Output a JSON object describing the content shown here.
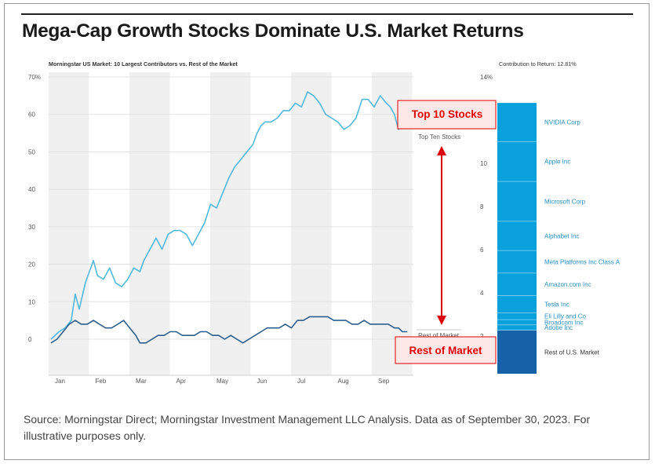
{
  "title": "Mega-Cap Growth Stocks Dominate U.S. Market Returns",
  "source": "Source: Morningstar Direct; Morningstar Investment Management LLC Analysis. Data as of September 30, 2023. For illustrative purposes only.",
  "annotations": {
    "top10_box": "Top 10 Stocks",
    "rest_box": "Rest of Market"
  },
  "colors": {
    "top10": "#52b8dc",
    "rest": "#2e5f8c",
    "bar_light": "#0aa0dc",
    "bar_dark": "#1562a8",
    "annot": "#e00000"
  },
  "chart_data": [
    {
      "type": "line",
      "title": "Morningstar US Market: 10 Largest Contributors vs. Rest of the Market",
      "categories": [
        "Jan",
        "Feb",
        "Mar",
        "Apr",
        "May",
        "Jun",
        "Jul",
        "Aug",
        "Sep"
      ],
      "ylim": [
        -8,
        70
      ],
      "yticks": [
        "70%",
        "60",
        "50",
        "40",
        "30",
        "20",
        "10",
        "0"
      ],
      "series": [
        {
          "name": "Top Ten Stocks",
          "end_label": "Top Ten Stocks",
          "points": [
            [
              0.0,
              0
            ],
            [
              0.2,
              2
            ],
            [
              0.35,
              3
            ],
            [
              0.5,
              5
            ],
            [
              0.6,
              12
            ],
            [
              0.7,
              8
            ],
            [
              0.85,
              15
            ],
            [
              0.95,
              18
            ],
            [
              1.05,
              21
            ],
            [
              1.15,
              17
            ],
            [
              1.3,
              16
            ],
            [
              1.45,
              19
            ],
            [
              1.6,
              15
            ],
            [
              1.75,
              14
            ],
            [
              1.9,
              16
            ],
            [
              2.05,
              19
            ],
            [
              2.2,
              18
            ],
            [
              2.3,
              21
            ],
            [
              2.45,
              24
            ],
            [
              2.6,
              27
            ],
            [
              2.75,
              24
            ],
            [
              2.9,
              28
            ],
            [
              3.05,
              29
            ],
            [
              3.2,
              29
            ],
            [
              3.35,
              28
            ],
            [
              3.5,
              25
            ],
            [
              3.65,
              28
            ],
            [
              3.8,
              31
            ],
            [
              3.95,
              36
            ],
            [
              4.1,
              35
            ],
            [
              4.25,
              39
            ],
            [
              4.4,
              43
            ],
            [
              4.55,
              46
            ],
            [
              4.7,
              48
            ],
            [
              4.85,
              50
            ],
            [
              5.0,
              52
            ],
            [
              5.1,
              55
            ],
            [
              5.2,
              57
            ],
            [
              5.3,
              58
            ],
            [
              5.45,
              58
            ],
            [
              5.6,
              59
            ],
            [
              5.75,
              61
            ],
            [
              5.9,
              61
            ],
            [
              6.05,
              63
            ],
            [
              6.2,
              62
            ],
            [
              6.35,
              66
            ],
            [
              6.5,
              65
            ],
            [
              6.65,
              63
            ],
            [
              6.8,
              60
            ],
            [
              6.95,
              59
            ],
            [
              7.1,
              58
            ],
            [
              7.25,
              56
            ],
            [
              7.4,
              57
            ],
            [
              7.55,
              59
            ],
            [
              7.7,
              64
            ],
            [
              7.85,
              64
            ],
            [
              8.0,
              62
            ],
            [
              8.15,
              65
            ],
            [
              8.3,
              63
            ],
            [
              8.4,
              62
            ],
            [
              8.5,
              60
            ],
            [
              8.6,
              56
            ],
            [
              8.7,
              57
            ],
            [
              8.82,
              58
            ]
          ]
        },
        {
          "name": "Rest of Market",
          "end_label": "Rest of Market",
          "points": [
            [
              0.0,
              -1
            ],
            [
              0.15,
              0
            ],
            [
              0.3,
              2
            ],
            [
              0.45,
              4
            ],
            [
              0.6,
              5
            ],
            [
              0.75,
              4
            ],
            [
              0.9,
              4
            ],
            [
              1.05,
              5
            ],
            [
              1.2,
              4
            ],
            [
              1.35,
              3
            ],
            [
              1.5,
              3
            ],
            [
              1.65,
              4
            ],
            [
              1.8,
              5
            ],
            [
              1.95,
              3
            ],
            [
              2.1,
              1
            ],
            [
              2.2,
              -1
            ],
            [
              2.35,
              -1
            ],
            [
              2.5,
              0
            ],
            [
              2.65,
              1
            ],
            [
              2.8,
              1
            ],
            [
              2.95,
              2
            ],
            [
              3.1,
              2
            ],
            [
              3.25,
              1
            ],
            [
              3.4,
              1
            ],
            [
              3.55,
              1
            ],
            [
              3.7,
              2
            ],
            [
              3.85,
              2
            ],
            [
              4.0,
              1
            ],
            [
              4.15,
              1
            ],
            [
              4.3,
              0
            ],
            [
              4.45,
              1
            ],
            [
              4.6,
              0
            ],
            [
              4.75,
              -1
            ],
            [
              4.9,
              0
            ],
            [
              5.05,
              1
            ],
            [
              5.2,
              2
            ],
            [
              5.35,
              3
            ],
            [
              5.5,
              3
            ],
            [
              5.65,
              3
            ],
            [
              5.8,
              4
            ],
            [
              5.95,
              3
            ],
            [
              6.1,
              5
            ],
            [
              6.25,
              5
            ],
            [
              6.4,
              6
            ],
            [
              6.55,
              6
            ],
            [
              6.7,
              6
            ],
            [
              6.85,
              6
            ],
            [
              7.0,
              5
            ],
            [
              7.15,
              5
            ],
            [
              7.3,
              5
            ],
            [
              7.45,
              4
            ],
            [
              7.6,
              4
            ],
            [
              7.75,
              5
            ],
            [
              7.9,
              4
            ],
            [
              8.05,
              4
            ],
            [
              8.2,
              4
            ],
            [
              8.35,
              4
            ],
            [
              8.5,
              3
            ],
            [
              8.6,
              3
            ],
            [
              8.7,
              2
            ],
            [
              8.82,
              2
            ]
          ]
        }
      ]
    },
    {
      "type": "bar",
      "title": "Contribution to Return: 12.81%",
      "yticks": [
        "14%",
        "12",
        "10",
        "8",
        "6",
        "4",
        "2"
      ],
      "ylim": [
        0,
        14
      ],
      "total": 12.81,
      "segments": [
        {
          "name": "Rest of U.S. Market",
          "value": 2.27
        },
        {
          "name": "Adobe Inc",
          "value": 0.25
        },
        {
          "name": "Broadcom Inc",
          "value": 0.25
        },
        {
          "name": "Eli Lilly and Co",
          "value": 0.3
        },
        {
          "name": "Tesla Inc",
          "value": 0.8
        },
        {
          "name": "Amazon.com Inc",
          "value": 1.05
        },
        {
          "name": "Meta Platforms Inc Class A",
          "value": 1.05
        },
        {
          "name": "Alphabet Inc",
          "value": 1.35
        },
        {
          "name": "Microsoft Corp",
          "value": 1.85
        },
        {
          "name": "Apple Inc",
          "value": 1.85
        },
        {
          "name": "NVIDIA Corp",
          "value": 1.79
        }
      ]
    }
  ]
}
